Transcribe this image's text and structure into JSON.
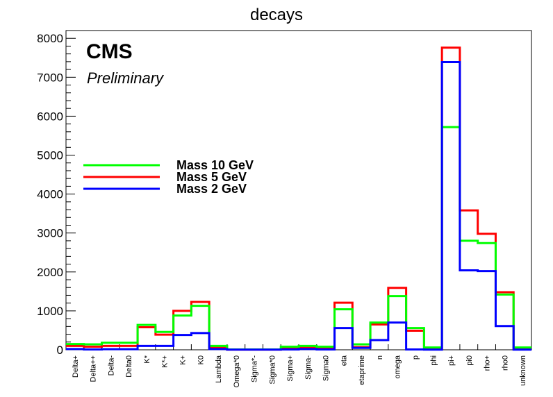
{
  "chart_data": {
    "type": "histogram",
    "title": "decays",
    "xlabel": "",
    "ylabel": "",
    "ylim": [
      0,
      8200
    ],
    "yticks": [
      0,
      1000,
      2000,
      3000,
      4000,
      5000,
      6000,
      7000,
      8000
    ],
    "ytick_labels": [
      "0",
      "1000",
      "2000",
      "3000",
      "4000",
      "5000",
      "6000",
      "7000",
      "8000"
    ],
    "categories": [
      "Delta+",
      "Delta++",
      "Delta-",
      "Delta0",
      "K*",
      "K*+",
      "K+",
      "K0",
      "Lambda",
      "Omega*0",
      "Sigma*-",
      "Sigma*0",
      "Sigma+",
      "Sigma-",
      "Sigma0",
      "eta",
      "etaprime",
      "n",
      "omega",
      "p",
      "phi",
      "pi+",
      "pi0",
      "rho+",
      "rho0",
      "unknown"
    ],
    "series": [
      {
        "name": "Mass 10 GeV",
        "color": "#00ff00",
        "values": [
          150,
          140,
          180,
          180,
          640,
          460,
          880,
          1130,
          100,
          10,
          10,
          10,
          80,
          100,
          80,
          1040,
          140,
          700,
          1380,
          560,
          60,
          5720,
          2800,
          2740,
          1420,
          60
        ]
      },
      {
        "name": "Mass 5 GeV",
        "color": "#ff0000",
        "values": [
          100,
          80,
          100,
          100,
          580,
          390,
          1000,
          1230,
          60,
          5,
          5,
          5,
          30,
          60,
          30,
          1210,
          70,
          650,
          1590,
          490,
          30,
          7760,
          3580,
          2980,
          1480,
          30
        ]
      },
      {
        "name": "Mass 2 GeV",
        "color": "#0000ff",
        "values": [
          20,
          10,
          15,
          15,
          100,
          100,
          380,
          430,
          20,
          5,
          5,
          5,
          10,
          20,
          10,
          560,
          50,
          250,
          700,
          10,
          5,
          7390,
          2040,
          2020,
          610,
          5
        ]
      }
    ],
    "legend_position": "left, middle",
    "annotations": [
      "CMS",
      "Preliminary"
    ]
  }
}
